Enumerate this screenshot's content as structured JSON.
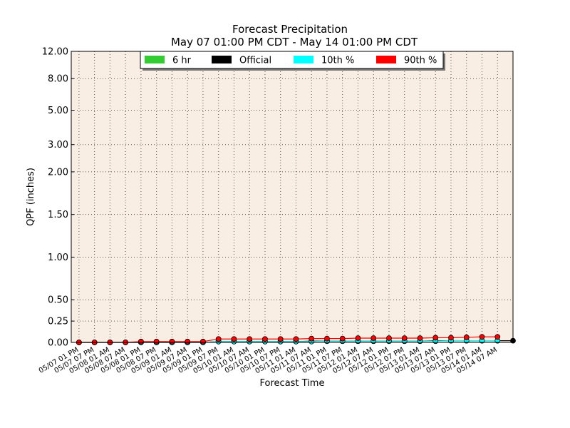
{
  "chart_data": {
    "type": "line",
    "title": "Forecast Precipitation",
    "subtitle": "May 07 01:00 PM CDT - May 14 01:00 PM CDT",
    "x_label": "Forecast Time",
    "y_label": "QPF (inches)",
    "categories": [
      "05/07 01 PM",
      "05/07 07 PM",
      "05/08 01 AM",
      "05/08 07 AM",
      "05/08 01 PM",
      "05/08 07 PM",
      "05/09 01 AM",
      "05/09 07 AM",
      "05/09 01 PM",
      "05/09 07 PM",
      "05/10 01 AM",
      "05/10 07 AM",
      "05/10 01 PM",
      "05/10 07 PM",
      "05/11 01 AM",
      "05/11 07 AM",
      "05/11 01 PM",
      "05/11 07 PM",
      "05/12 01 AM",
      "05/12 07 AM",
      "05/12 01 PM",
      "05/12 07 PM",
      "05/13 01 AM",
      "05/13 07 AM",
      "05/13 01 PM",
      "05/13 07 PM",
      "05/14 01 AM",
      "05/14 07 AM",
      null
    ],
    "series": [
      {
        "name": "6 hr",
        "color": "#33cc33",
        "style": "bar",
        "values": [
          0,
          0,
          0,
          0,
          0,
          0,
          0,
          0,
          0,
          0,
          0,
          0,
          0,
          0,
          0,
          0,
          0,
          0,
          0,
          0,
          0,
          0,
          0,
          0,
          0,
          0,
          0,
          0,
          null
        ]
      },
      {
        "name": "Official",
        "color": "#000000",
        "style": "line",
        "values": [
          0,
          0,
          0,
          0,
          0,
          0,
          0,
          0,
          0,
          0.01,
          0.01,
          0.01,
          0.01,
          0.01,
          0.01,
          0.015,
          0.015,
          0.015,
          0.015,
          0.015,
          0.015,
          0.015,
          0.015,
          0.02,
          0.02,
          0.02,
          0.02,
          0.02,
          0.02
        ]
      },
      {
        "name": "10th %",
        "color": "#00ffff",
        "style": "line",
        "values": [
          0,
          0,
          0,
          0,
          0,
          0,
          0,
          0,
          0,
          0.01,
          0.01,
          0.01,
          0.01,
          0.01,
          0.01,
          0.01,
          0.015,
          0.015,
          0.015,
          0.015,
          0.015,
          0.015,
          0.015,
          0.015,
          0.02,
          0.02,
          0.02,
          0.02,
          null
        ]
      },
      {
        "name": "90th %",
        "color": "#ff0000",
        "style": "line",
        "values": [
          0,
          0,
          0,
          0,
          0.01,
          0.01,
          0.01,
          0.01,
          0.01,
          0.04,
          0.04,
          0.04,
          0.04,
          0.04,
          0.04,
          0.045,
          0.045,
          0.045,
          0.05,
          0.05,
          0.05,
          0.05,
          0.05,
          0.055,
          0.055,
          0.06,
          0.065,
          0.065,
          null
        ]
      }
    ],
    "yscale": "linear-log",
    "ylinthresh": 2,
    "ylim": [
      0,
      12
    ],
    "yticks": [
      {
        "value": 0,
        "label": "0.00"
      },
      {
        "value": 0.25,
        "label": "0.25"
      },
      {
        "value": 0.5,
        "label": "0.50"
      },
      {
        "value": 1,
        "label": "1.00"
      },
      {
        "value": 1.5,
        "label": "1.50"
      },
      {
        "value": 2,
        "label": "2.00"
      },
      {
        "value": 3,
        "label": "3.00"
      },
      {
        "value": 5,
        "label": "5.00"
      },
      {
        "value": 8,
        "label": "8.00"
      },
      {
        "value": 12,
        "label": "12.00"
      }
    ],
    "grid": true,
    "legend": "top"
  }
}
